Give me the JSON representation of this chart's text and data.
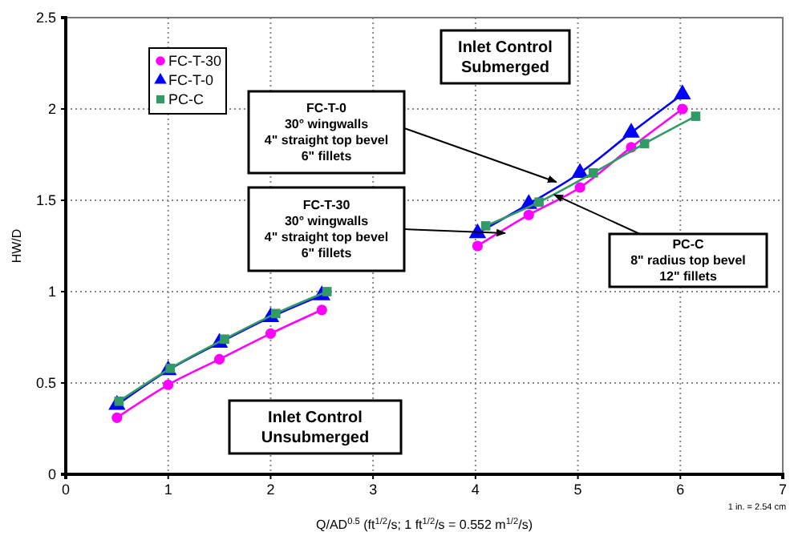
{
  "chart_data": {
    "type": "line",
    "xlabel": "Q/AD$^{0.5}$ (ft$^{1/2}$/s; 1 ft$^{1/2}$/s = 0.552 m$^{1/2}$/s)",
    "ylabel": "HW/D",
    "xlim": [
      0,
      7
    ],
    "xticks": [
      0,
      1,
      2,
      3,
      4,
      5,
      6,
      7
    ],
    "ylim": [
      0,
      2.5
    ],
    "yticks": [
      0,
      0.5,
      1,
      1.5,
      2,
      2.5
    ],
    "grid": true,
    "legend": "top left",
    "series": [
      {
        "name": "FC-T-30",
        "color": "#ff00ff",
        "marker": "circle",
        "x": [
          0.5,
          1,
          1.5,
          2,
          2.5,
          3,
          4.02,
          4.52,
          5.02,
          5.52,
          6.02
        ],
        "values": [
          0.31,
          0.49,
          0.63,
          0.77,
          0.9,
          null,
          1.25,
          1.42,
          1.57,
          1.79,
          2.0
        ]
      },
      {
        "name": "FC-T-0",
        "color": "#0000ff",
        "marker": "triangle",
        "x": [
          0.5,
          1,
          1.5,
          2,
          2.5,
          3,
          4.02,
          4.52,
          5.02,
          5.52,
          6.02
        ],
        "values": [
          0.38,
          0.57,
          0.72,
          0.86,
          0.98,
          null,
          1.32,
          1.48,
          1.65,
          1.87,
          2.08
        ]
      },
      {
        "name": "PC-C",
        "color": "#339966",
        "marker": "square",
        "x": [
          0.52,
          1.02,
          1.55,
          2.05,
          2.55,
          3,
          4.1,
          4.62,
          5.15,
          5.65,
          6.15
        ],
        "values": [
          0.4,
          0.58,
          0.74,
          0.88,
          1.0,
          null,
          1.36,
          1.49,
          1.65,
          1.81,
          1.96
        ]
      }
    ],
    "annotations": [
      "Inlet Control\nSubmerged",
      {
        "text": "FC-T-0\n30° wingwalls\n4\" straight top bevel\n6\" fillets",
        "x": 4.79,
        "y": 1.6
      },
      {
        "text": "FC-T-30\n30° wingwalls\n4\" straight top bevel\n6\" fillets",
        "x": 4.29,
        "y": 1.32
      },
      {
        "text": "PC-C\n8\" radius top bevel\n12\" fillets",
        "x": 4.77,
        "y": 1.53
      },
      "Inlet Control\nUnsubmerged",
      "1 in. = 2.54 cm"
    ]
  }
}
